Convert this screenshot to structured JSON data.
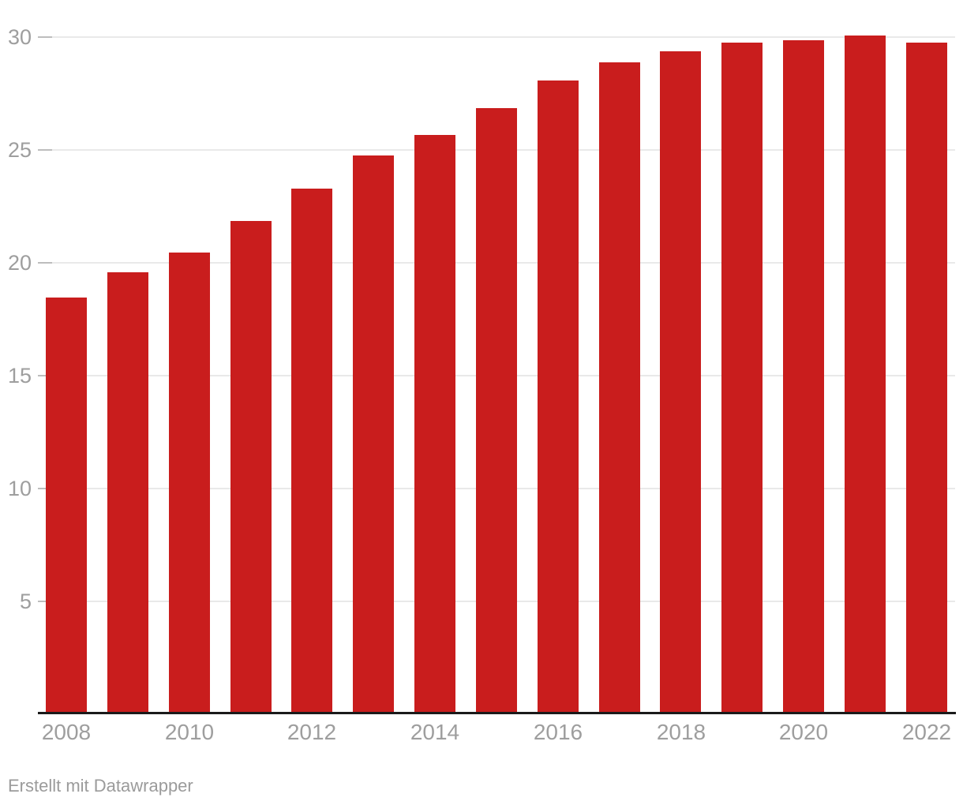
{
  "chart_data": {
    "type": "bar",
    "categories": [
      "2008",
      "2009",
      "2010",
      "2011",
      "2012",
      "2013",
      "2014",
      "2015",
      "2016",
      "2017",
      "2018",
      "2019",
      "2020",
      "2021",
      "2022"
    ],
    "values": [
      18.4,
      19.5,
      20.4,
      21.8,
      23.2,
      24.7,
      25.6,
      26.8,
      28.0,
      28.8,
      29.3,
      29.7,
      29.8,
      30.0,
      29.7
    ],
    "title": "",
    "xlabel": "",
    "ylabel": "",
    "ylim": [
      0,
      30
    ],
    "y_ticks": [
      5,
      10,
      15,
      20,
      25,
      30
    ],
    "x_tick_labels": [
      "2008",
      "2010",
      "2012",
      "2014",
      "2016",
      "2018",
      "2020",
      "2022"
    ],
    "grid": true,
    "legend": false,
    "colors": {
      "bar": "#c91d1d",
      "gridline": "#e9e9e9",
      "tick_dash": "#bdbdbd",
      "axis_baseline": "#1a1a1a",
      "tick_label": "#9e9e9e",
      "footer_text": "#9b9b9b"
    }
  },
  "footer": {
    "attribution": "Erstellt mit Datawrapper"
  }
}
